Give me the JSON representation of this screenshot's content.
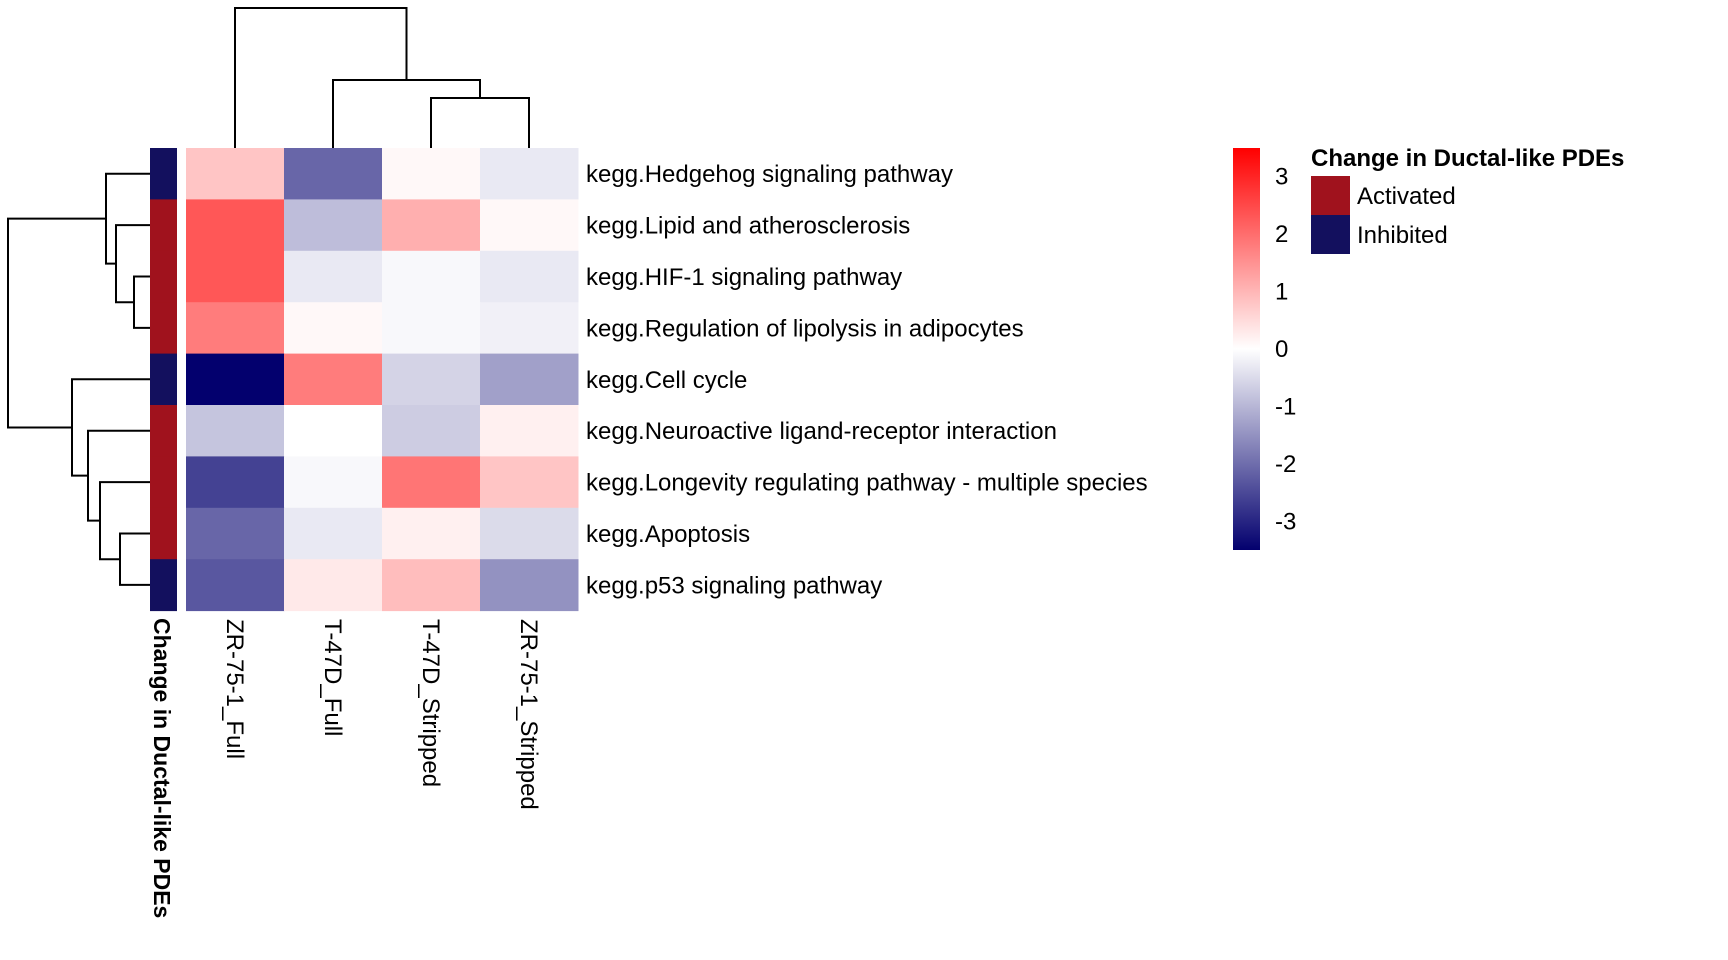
{
  "chart_data": {
    "type": "heatmap",
    "columns": [
      "ZR-75-1_Full",
      "T-47D_Full",
      "T-47D_Stripped",
      "ZR-75-1_Stripped"
    ],
    "rows": [
      "kegg.Hedgehog signaling pathway",
      "kegg.Lipid and atherosclerosis",
      "kegg.HIF-1 signaling pathway",
      "kegg.Regulation of lipolysis in adipocytes",
      "kegg.Cell cycle",
      "kegg.Neuroactive ligand-receptor interaction",
      "kegg.Longevity regulating pathway - multiple species",
      "kegg.Apoptosis",
      "kegg.p53 signaling pathway"
    ],
    "values": [
      [
        0.8,
        -2.1,
        0.1,
        -0.3
      ],
      [
        2.3,
        -0.9,
        1.1,
        0.1
      ],
      [
        2.3,
        -0.3,
        -0.1,
        -0.3
      ],
      [
        1.8,
        0.1,
        -0.1,
        -0.2
      ],
      [
        -3.5,
        1.8,
        -0.6,
        -1.3
      ],
      [
        -0.8,
        0.0,
        -0.7,
        0.2
      ],
      [
        -2.6,
        -0.1,
        1.9,
        0.8
      ],
      [
        -2.1,
        -0.3,
        0.2,
        -0.5
      ],
      [
        -2.3,
        0.3,
        0.9,
        -1.5
      ]
    ],
    "row_annotation": {
      "title": "Change in Ductal-like PDEs",
      "values": [
        "Inhibited",
        "Activated",
        "Activated",
        "Activated",
        "Inhibited",
        "Activated",
        "Activated",
        "Activated",
        "Inhibited"
      ],
      "levels": [
        "Activated",
        "Inhibited"
      ],
      "colors": {
        "Activated": "#a0121d",
        "Inhibited": "#13105e"
      }
    },
    "color_scale": {
      "min": -3.5,
      "max": 3.5,
      "low_color": "#03006e",
      "mid_color": "#ffffff",
      "high_color": "#ff0000",
      "ticks": [
        3,
        2,
        1,
        0,
        -1,
        -2,
        -3
      ]
    },
    "column_dendrogram": "((ZR-75-1_Full),(T-47D_Full,(T-47D_Stripped,ZR-75-1_Stripped)))",
    "row_dendrogram": "((Hedgehog,(Lipid,(HIF-1,Lipolysis))),(Cell cycle,(Neuroactive,(Longevity,(Apoptosis,p53)))))"
  },
  "legend": {
    "title": "Change in Ductal-like PDEs",
    "items": [
      {
        "label": "Activated",
        "color": "#a0121d"
      },
      {
        "label": "Inhibited",
        "color": "#13105e"
      }
    ]
  },
  "annotation_axis_label": "Change in Ductal-like PDEs"
}
